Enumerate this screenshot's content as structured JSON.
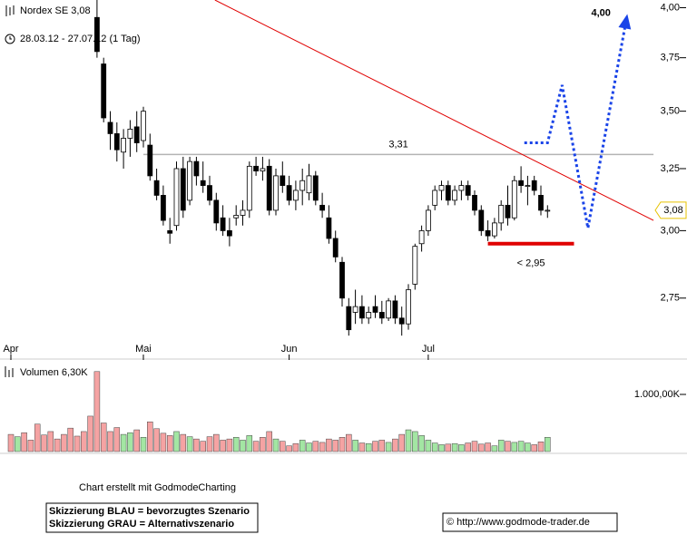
{
  "chart_data": {
    "type": "candlestick",
    "title": "Nordex SE 3,08",
    "subtitle": "28.03.12 - 27.07.12 (1 Tag)",
    "categories": [
      "Apr",
      null,
      null,
      null,
      null,
      null,
      null,
      null,
      null,
      null,
      null,
      null,
      null,
      null,
      null,
      null,
      null,
      null,
      null,
      null,
      "Mai",
      null,
      null,
      null,
      null,
      null,
      null,
      null,
      null,
      null,
      null,
      null,
      null,
      null,
      null,
      null,
      null,
      null,
      null,
      null,
      null,
      null,
      "Jun",
      null,
      null,
      null,
      null,
      null,
      null,
      null,
      null,
      null,
      null,
      null,
      null,
      null,
      null,
      null,
      null,
      null,
      null,
      null,
      null,
      "Jul",
      null,
      null,
      null,
      null,
      null,
      null,
      null,
      null,
      null,
      null,
      null,
      null,
      null,
      null,
      null,
      null,
      null,
      null
    ],
    "open": [
      null,
      null,
      null,
      null,
      null,
      null,
      null,
      null,
      null,
      null,
      null,
      null,
      null,
      3.95,
      3.72,
      3.45,
      3.4,
      3.32,
      3.38,
      3.43,
      3.37,
      3.35,
      3.2,
      3.14,
      3.0,
      3.02,
      3.25,
      3.12,
      3.28,
      3.2,
      3.18,
      3.12,
      3.05,
      3.0,
      3.05,
      3.06,
      3.08,
      3.26,
      3.24,
      3.26,
      3.08,
      3.22,
      3.18,
      3.12,
      3.16,
      3.15,
      3.22,
      3.1,
      3.05,
      2.97,
      2.88,
      2.72,
      2.7,
      2.72,
      2.68,
      2.72,
      2.7,
      2.68,
      2.74,
      2.68,
      2.66,
      2.8,
      2.95,
      3.0,
      3.1,
      3.16,
      3.18,
      3.12,
      3.16,
      3.18,
      3.14,
      3.08,
      3.0,
      2.98,
      3.03,
      3.1,
      3.05,
      3.2,
      3.18,
      3.2,
      3.14,
      3.08
    ],
    "high": [
      null,
      null,
      null,
      null,
      null,
      null,
      null,
      null,
      null,
      null,
      null,
      null,
      null,
      4.04,
      3.75,
      3.5,
      3.45,
      3.42,
      3.46,
      3.5,
      3.52,
      3.4,
      3.25,
      3.18,
      3.05,
      3.28,
      3.3,
      3.3,
      3.3,
      3.28,
      3.22,
      3.15,
      3.1,
      3.05,
      3.1,
      3.12,
      3.28,
      3.3,
      3.3,
      3.29,
      3.25,
      3.28,
      3.22,
      3.2,
      3.25,
      3.27,
      3.24,
      3.15,
      3.1,
      3.0,
      2.9,
      2.75,
      2.78,
      2.76,
      2.72,
      2.76,
      2.74,
      2.75,
      2.76,
      2.72,
      2.8,
      2.95,
      3.02,
      3.1,
      3.18,
      3.2,
      3.2,
      3.18,
      3.2,
      3.2,
      3.16,
      3.1,
      3.04,
      3.05,
      3.12,
      3.18,
      3.22,
      3.26,
      3.22,
      3.22,
      3.18,
      3.1
    ],
    "low": [
      null,
      null,
      null,
      null,
      null,
      null,
      null,
      null,
      null,
      null,
      null,
      null,
      null,
      3.75,
      3.45,
      3.33,
      3.28,
      3.25,
      3.3,
      3.32,
      3.34,
      3.2,
      3.12,
      3.02,
      2.95,
      3.0,
      3.05,
      3.1,
      3.18,
      3.15,
      3.1,
      3.0,
      2.98,
      2.94,
      3.02,
      3.02,
      3.05,
      3.22,
      3.2,
      3.06,
      3.06,
      3.15,
      3.1,
      3.08,
      3.1,
      3.12,
      3.1,
      3.05,
      2.95,
      2.88,
      2.72,
      2.62,
      2.66,
      2.66,
      2.66,
      2.68,
      2.66,
      2.67,
      2.66,
      2.62,
      2.64,
      2.78,
      2.92,
      2.98,
      3.08,
      3.12,
      3.1,
      3.1,
      3.12,
      3.12,
      3.06,
      2.98,
      2.96,
      2.97,
      3.0,
      3.02,
      3.04,
      3.15,
      3.1,
      3.14,
      3.06,
      3.05
    ],
    "close": [
      null,
      null,
      null,
      null,
      null,
      null,
      null,
      null,
      null,
      null,
      null,
      null,
      null,
      3.78,
      3.47,
      3.4,
      3.33,
      3.38,
      3.42,
      3.36,
      3.5,
      3.22,
      3.14,
      3.04,
      2.99,
      3.25,
      3.08,
      3.28,
      3.22,
      3.18,
      3.12,
      3.03,
      3.0,
      2.98,
      3.06,
      3.08,
      3.26,
      3.24,
      3.25,
      3.08,
      3.22,
      3.18,
      3.12,
      3.16,
      3.2,
      3.22,
      3.12,
      3.08,
      2.97,
      2.9,
      2.75,
      2.64,
      2.72,
      2.68,
      2.7,
      2.7,
      2.68,
      2.74,
      2.68,
      2.66,
      2.78,
      2.94,
      3.0,
      3.08,
      3.16,
      3.18,
      3.12,
      3.16,
      3.18,
      3.14,
      3.08,
      3.0,
      2.98,
      3.03,
      3.1,
      3.05,
      3.2,
      3.18,
      3.18,
      3.16,
      3.08,
      3.08
    ],
    "up_color": "#ffffff",
    "down_color": "#000000",
    "log_scale": true,
    "ylim": [
      2.59,
      4.04
    ],
    "yticks": [
      {
        "value": 2.75,
        "label": "2,75"
      },
      {
        "value": 3,
        "label": "3,00"
      },
      {
        "value": 3.25,
        "label": "3,25"
      },
      {
        "value": 3.5,
        "label": "3,50"
      },
      {
        "value": 3.75,
        "label": "3,75"
      },
      {
        "value": 4,
        "label": "4,00"
      }
    ],
    "price_tag": {
      "value": 3.08,
      "label": "3,08"
    },
    "resistance": {
      "value": 3.31,
      "label": "3,31",
      "x": [
        20,
        97
      ],
      "color": "#b4b4b4"
    },
    "support": {
      "value": 2.95,
      "label": "< 2,95",
      "x": [
        72,
        85
      ],
      "color": "#e00000"
    },
    "trendline": {
      "x": [
        30.8,
        97
      ],
      "y": [
        4.04,
        3.04
      ],
      "color": "#e00000"
    },
    "scenario": {
      "x": [
        77.5,
        81,
        83.2,
        87.1,
        92.9
      ],
      "y": [
        3.36,
        3.36,
        3.62,
        3.01,
        3.94
      ],
      "label": "4,00",
      "color": "#1a44e8"
    },
    "volume": {
      "label": "Volumen 6,30K",
      "values": [
        300000,
        260000,
        330000,
        200000,
        480000,
        290000,
        350000,
        220000,
        300000,
        410000,
        270000,
        350000,
        620000,
        1400000,
        500000,
        350000,
        420000,
        300000,
        330000,
        380000,
        250000,
        520000,
        400000,
        320000,
        280000,
        350000,
        300000,
        260000,
        220000,
        180000,
        260000,
        300000,
        200000,
        220000,
        250000,
        200000,
        280000,
        180000,
        250000,
        350000,
        220000,
        180000,
        100000,
        140000,
        200000,
        150000,
        180000,
        160000,
        220000,
        200000,
        250000,
        300000,
        200000,
        150000,
        140000,
        180000,
        200000,
        160000,
        220000,
        300000,
        380000,
        350000,
        280000,
        200000,
        150000,
        120000,
        130000,
        140000,
        120000,
        150000,
        180000,
        130000,
        150000,
        100000,
        200000,
        180000,
        160000,
        180000,
        150000,
        120000,
        170000,
        250000
      ],
      "colors": [
        "#f5a3a3",
        "#a3e6a3",
        "#f5a3a3",
        "#f5a3a3",
        "#f5a3a3",
        "#f5a3a3",
        "#f5a3a3",
        "#f5a3a3",
        "#f5a3a3",
        "#f5a3a3",
        "#f5a3a3",
        "#f5a3a3",
        "#f5a3a3",
        "#f5a3a3",
        "#f5a3a3",
        "#f5a3a3",
        "#f5a3a3",
        "#a3e6a3",
        "#a3e6a3",
        "#f5a3a3",
        "#a3e6a3",
        "#f5a3a3",
        "#f5a3a3",
        "#f5a3a3",
        "#f5a3a3",
        "#a3e6a3",
        "#f5a3a3",
        "#a3e6a3",
        "#f5a3a3",
        "#f5a3a3",
        "#f5a3a3",
        "#f5a3a3",
        "#f5a3a3",
        "#f5a3a3",
        "#a3e6a3",
        "#a3e6a3",
        "#a3e6a3",
        "#f5a3a3",
        "#f5a3a3",
        "#f5a3a3",
        "#a3e6a3",
        "#f5a3a3",
        "#f5a3a3",
        "#f5a3a3",
        "#a3e6a3",
        "#a3e6a3",
        "#f5a3a3",
        "#f5a3a3",
        "#f5a3a3",
        "#f5a3a3",
        "#f5a3a3",
        "#f5a3a3",
        "#a3e6a3",
        "#f5a3a3",
        "#a3e6a3",
        "#f5a3a3",
        "#f5a3a3",
        "#a3e6a3",
        "#f5a3a3",
        "#f5a3a3",
        "#a3e6a3",
        "#a3e6a3",
        "#a3e6a3",
        "#a3e6a3",
        "#a3e6a3",
        "#a3e6a3",
        "#f5a3a3",
        "#a3e6a3",
        "#a3e6a3",
        "#f5a3a3",
        "#f5a3a3",
        "#f5a3a3",
        "#f5a3a3",
        "#a3e6a3",
        "#a3e6a3",
        "#f5a3a3",
        "#a3e6a3",
        "#a3e6a3",
        "#a3e6a3",
        "#f5a3a3",
        "#f5a3a3",
        "#a3e6a3"
      ],
      "ylim": [
        0,
        1476000
      ],
      "yticks": [
        {
          "value": 1000000,
          "label": "1.000,00K"
        }
      ]
    },
    "credit": "Chart erstellt mit GodmodeCharting",
    "legend": [
      "Skizzierung BLAU = bevorzugtes Szenario",
      "Skizzierung GRAU = Alternativszenario"
    ],
    "source": "© http://www.godmode-trader.de"
  }
}
